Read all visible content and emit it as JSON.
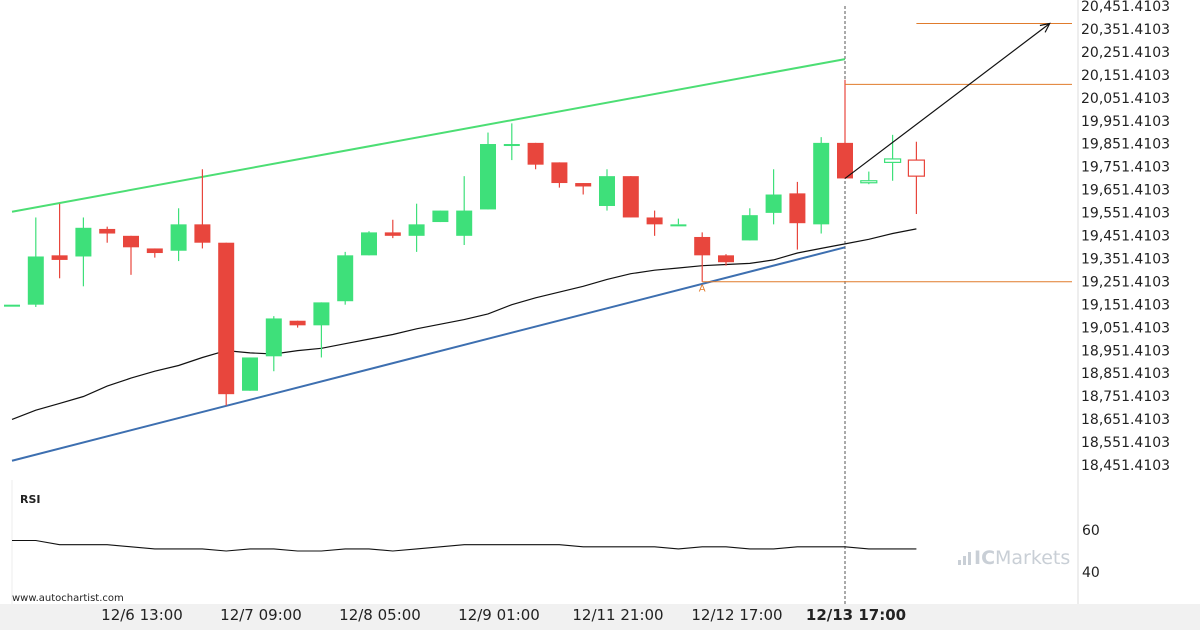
{
  "chart_data": {
    "type": "candlestick",
    "price_axis": {
      "ticks": [
        "20,451.4103",
        "20,351.4103",
        "20,251.4103",
        "20,151.4103",
        "20,051.4103",
        "19,951.4103",
        "19,851.4103",
        "19,751.4103",
        "19,651.4103",
        "19,551.4103",
        "19,451.4103",
        "19,351.4103",
        "19,251.4103",
        "19,151.4103",
        "19,051.4103",
        "18,951.4103",
        "18,851.4103",
        "18,751.4103",
        "18,651.4103",
        "18,551.4103",
        "18,451.4103"
      ],
      "range": [
        18451.4103,
        20451.4103
      ]
    },
    "time_axis": {
      "ticks": [
        {
          "label": "12/6 13:00",
          "index": 5,
          "bold": false
        },
        {
          "label": "12/7 09:00",
          "index": 10,
          "bold": false
        },
        {
          "label": "12/8 05:00",
          "index": 15,
          "bold": false
        },
        {
          "label": "12/9 01:00",
          "index": 20,
          "bold": false
        },
        {
          "label": "12/11 21:00",
          "index": 25,
          "bold": false
        },
        {
          "label": "12/12 17:00",
          "index": 30,
          "bold": false
        },
        {
          "label": "12/13 17:00",
          "index": 35,
          "bold": true
        }
      ]
    },
    "candles": [
      {
        "o": 19150,
        "h": 19150,
        "l": 19150,
        "c": 19150
      },
      {
        "o": 19150,
        "h": 19530,
        "l": 19140,
        "c": 19360
      },
      {
        "o": 19365,
        "h": 19590,
        "l": 19265,
        "c": 19345
      },
      {
        "o": 19360,
        "h": 19530,
        "l": 19230,
        "c": 19485
      },
      {
        "o": 19480,
        "h": 19490,
        "l": 19420,
        "c": 19460
      },
      {
        "o": 19450,
        "h": 19450,
        "l": 19280,
        "c": 19400
      },
      {
        "o": 19395,
        "h": 19395,
        "l": 19355,
        "c": 19375
      },
      {
        "o": 19385,
        "h": 19570,
        "l": 19340,
        "c": 19500
      },
      {
        "o": 19500,
        "h": 19740,
        "l": 19395,
        "c": 19420
      },
      {
        "o": 19420,
        "h": 19420,
        "l": 18710,
        "c": 18760
      },
      {
        "o": 18775,
        "h": 18920,
        "l": 18775,
        "c": 18920
      },
      {
        "o": 18925,
        "h": 19100,
        "l": 18860,
        "c": 19090
      },
      {
        "o": 19080,
        "h": 19080,
        "l": 19050,
        "c": 19060
      },
      {
        "o": 19060,
        "h": 19160,
        "l": 18920,
        "c": 19160
      },
      {
        "o": 19165,
        "h": 19380,
        "l": 19150,
        "c": 19365
      },
      {
        "o": 19365,
        "h": 19470,
        "l": 19365,
        "c": 19465
      },
      {
        "o": 19465,
        "h": 19520,
        "l": 19440,
        "c": 19450
      },
      {
        "o": 19450,
        "h": 19590,
        "l": 19380,
        "c": 19500
      },
      {
        "o": 19510,
        "h": 19560,
        "l": 19510,
        "c": 19560
      },
      {
        "o": 19450,
        "h": 19710,
        "l": 19410,
        "c": 19560
      },
      {
        "o": 19565,
        "h": 19900,
        "l": 19565,
        "c": 19850
      },
      {
        "o": 19845,
        "h": 19940,
        "l": 19780,
        "c": 19850
      },
      {
        "o": 19855,
        "h": 19855,
        "l": 19740,
        "c": 19760
      },
      {
        "o": 19770,
        "h": 19770,
        "l": 19660,
        "c": 19680
      },
      {
        "o": 19680,
        "h": 19680,
        "l": 19630,
        "c": 19665
      },
      {
        "o": 19580,
        "h": 19740,
        "l": 19560,
        "c": 19710
      },
      {
        "o": 19710,
        "h": 19710,
        "l": 19530,
        "c": 19530
      },
      {
        "o": 19530,
        "h": 19560,
        "l": 19450,
        "c": 19500
      },
      {
        "o": 19500,
        "h": 19525,
        "l": 19500,
        "c": 19500
      },
      {
        "o": 19445,
        "h": 19465,
        "l": 19250,
        "c": 19365
      },
      {
        "o": 19365,
        "h": 19370,
        "l": 19320,
        "c": 19335
      },
      {
        "o": 19430,
        "h": 19570,
        "l": 19430,
        "c": 19540
      },
      {
        "o": 19550,
        "h": 19740,
        "l": 19500,
        "c": 19630
      },
      {
        "o": 19635,
        "h": 19685,
        "l": 19390,
        "c": 19505
      },
      {
        "o": 19500,
        "h": 19880,
        "l": 19460,
        "c": 19855
      },
      {
        "o": 19855,
        "h": 20130,
        "l": 19700,
        "c": 19700
      },
      {
        "o": 19690,
        "h": 19730,
        "l": 19675,
        "c": 19690
      },
      {
        "o": 19770,
        "h": 19890,
        "l": 19690,
        "c": 19785
      },
      {
        "o": 19780,
        "h": 19860,
        "l": 19545,
        "c": 19710
      }
    ],
    "pending_candle_indices": [
      36,
      37,
      38
    ],
    "moving_average": [
      {
        "i": 0,
        "v": 18650
      },
      {
        "i": 1,
        "v": 18690
      },
      {
        "i": 2,
        "v": 18720
      },
      {
        "i": 3,
        "v": 18750
      },
      {
        "i": 4,
        "v": 18795
      },
      {
        "i": 5,
        "v": 18830
      },
      {
        "i": 6,
        "v": 18860
      },
      {
        "i": 7,
        "v": 18885
      },
      {
        "i": 8,
        "v": 18920
      },
      {
        "i": 9,
        "v": 18950
      },
      {
        "i": 10,
        "v": 18940
      },
      {
        "i": 11,
        "v": 18935
      },
      {
        "i": 12,
        "v": 18950
      },
      {
        "i": 13,
        "v": 18960
      },
      {
        "i": 14,
        "v": 18980
      },
      {
        "i": 15,
        "v": 19000
      },
      {
        "i": 16,
        "v": 19020
      },
      {
        "i": 17,
        "v": 19045
      },
      {
        "i": 18,
        "v": 19065
      },
      {
        "i": 19,
        "v": 19085
      },
      {
        "i": 20,
        "v": 19110
      },
      {
        "i": 21,
        "v": 19150
      },
      {
        "i": 22,
        "v": 19180
      },
      {
        "i": 23,
        "v": 19205
      },
      {
        "i": 24,
        "v": 19230
      },
      {
        "i": 25,
        "v": 19260
      },
      {
        "i": 26,
        "v": 19285
      },
      {
        "i": 27,
        "v": 19300
      },
      {
        "i": 28,
        "v": 19310
      },
      {
        "i": 29,
        "v": 19320
      },
      {
        "i": 30,
        "v": 19325
      },
      {
        "i": 31,
        "v": 19330
      },
      {
        "i": 32,
        "v": 19345
      },
      {
        "i": 33,
        "v": 19375
      },
      {
        "i": 34,
        "v": 19395
      },
      {
        "i": 35,
        "v": 19415
      },
      {
        "i": 36,
        "v": 19435
      },
      {
        "i": 37,
        "v": 19460
      },
      {
        "i": 38,
        "v": 19480
      }
    ],
    "upper_trendline": {
      "start": {
        "i": 0,
        "v": 19555
      },
      "end": {
        "i": 35,
        "v": 20220
      },
      "color": "#4cde74"
    },
    "lower_trendline": {
      "start": {
        "i": 0,
        "v": 18470
      },
      "end": {
        "i": 35,
        "v": 19400
      },
      "color": "#3d6fb0"
    },
    "current_time_index": 35,
    "target_level": {
      "value": 20375,
      "from_index": 38,
      "color": "#e07b2c"
    },
    "resistance_level": {
      "value": 20110,
      "from_index": 35,
      "color": "#e07b2c"
    },
    "support_level": {
      "value": 19250,
      "from_index": 29,
      "color": "#e07b2c"
    },
    "point_a": {
      "label": "A",
      "index": 29,
      "value": 19250
    },
    "forecast_arrow": {
      "from": {
        "i": 35,
        "v": 19700
      },
      "to": {
        "i": 43.6,
        "v": 20375
      }
    },
    "rsi": {
      "label": "RSI",
      "ticks": [
        "60",
        "40"
      ],
      "range": [
        30,
        70
      ],
      "values": [
        55,
        55,
        53,
        53,
        53,
        52,
        51,
        51,
        51,
        50,
        51,
        51,
        50,
        50,
        51,
        51,
        50,
        51,
        52,
        53,
        53,
        53,
        53,
        53,
        52,
        52,
        52,
        52,
        51,
        52,
        52,
        51,
        51,
        52,
        52,
        52,
        51,
        51,
        51
      ]
    },
    "colors": {
      "up": "#3ee07a",
      "down": "#e8463d",
      "ma": "#111111",
      "axis_line": "#dddddd",
      "pending_stroke": "#e8463d",
      "crosshair": "#555555"
    }
  },
  "watermark": "www.autochartist.com",
  "brand": {
    "name_a": "IC",
    "name_b": "Markets"
  }
}
